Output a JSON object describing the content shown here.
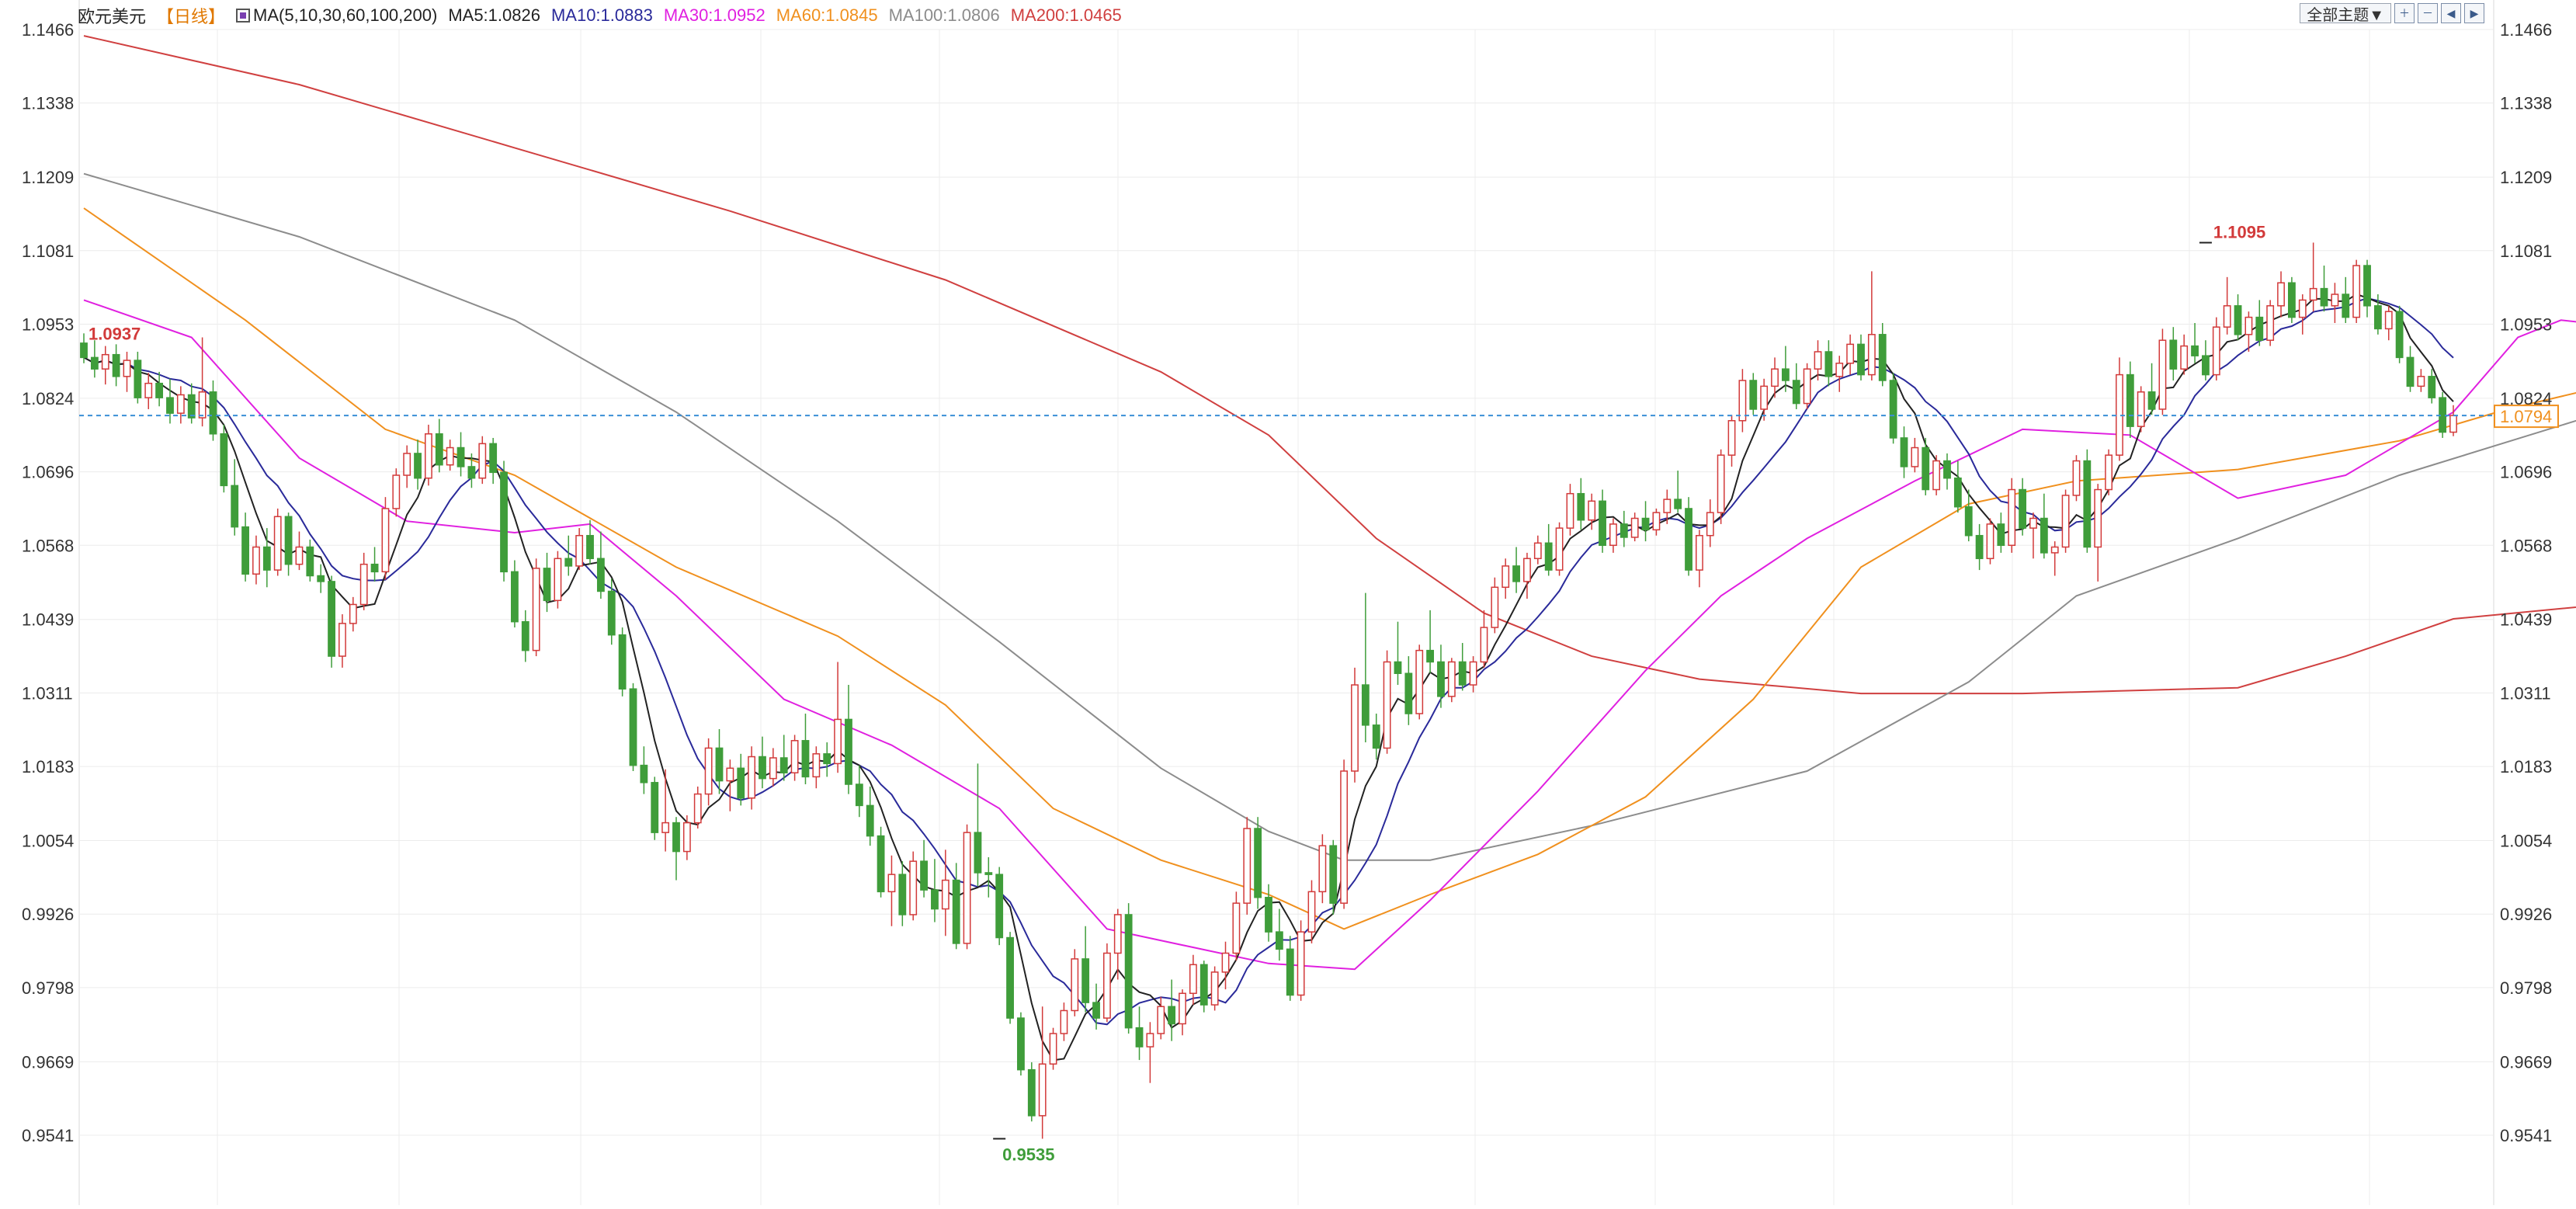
{
  "header": {
    "symbol": "欧元美元",
    "period": "【日线】",
    "ma_params": "MA(5,10,30,60,100,200)",
    "ma_values": [
      {
        "label": "MA5:1.0826",
        "color": "#222222"
      },
      {
        "label": "MA10:1.0883",
        "color": "#2a2a9a"
      },
      {
        "label": "MA30:1.0952",
        "color": "#e020e0"
      },
      {
        "label": "MA60:1.0845",
        "color": "#f0901e"
      },
      {
        "label": "MA100:1.0806",
        "color": "#8c8c8c"
      },
      {
        "label": "MA200:1.0465",
        "color": "#d04040"
      }
    ]
  },
  "toolbar": {
    "theme_label": "全部主题▼",
    "icons": [
      "zoom-in-icon",
      "zoom-out-icon",
      "prev-icon",
      "next-icon"
    ]
  },
  "colors": {
    "up": "#d23a3a",
    "down": "#3f9d3a",
    "grid": "#ececec",
    "current_line": "#3a8fd6",
    "axis_text": "#333333",
    "price_tag_border": "#f0901e",
    "price_tag_text": "#f0901e",
    "high_label": "#d23a3a",
    "low_label": "#3f9d3a"
  },
  "chart_data": {
    "type": "candlestick",
    "title": "欧元美元【日线】",
    "y_ticks": [
      "1.1466",
      "1.1338",
      "1.1209",
      "1.1081",
      "1.0953",
      "1.0824",
      "1.0696",
      "1.0568",
      "1.0439",
      "1.0311",
      "1.0183",
      "1.0054",
      "0.9926",
      "0.9798",
      "0.9669",
      "0.9541"
    ],
    "ylim": [
      0.9496,
      1.1508
    ],
    "current_price": "1.0794",
    "annotations": {
      "left_price": "1.0937",
      "high": "1.1095",
      "low": "0.9535"
    },
    "highlights": {
      "high_index": 197,
      "low_index": 85
    },
    "candles": [
      [
        1.092,
        1.0937,
        1.0885,
        1.0895
      ],
      [
        1.0895,
        1.0925,
        1.086,
        1.0875
      ],
      [
        1.0875,
        1.0915,
        1.0848,
        1.09
      ],
      [
        1.09,
        1.0918,
        1.0845,
        1.0862
      ],
      [
        1.0862,
        1.0905,
        1.0835,
        1.089
      ],
      [
        1.089,
        1.0905,
        1.0815,
        1.0825
      ],
      [
        1.0825,
        1.0868,
        1.0805,
        1.085
      ],
      [
        1.085,
        1.087,
        1.081,
        1.0825
      ],
      [
        1.0825,
        1.0858,
        1.078,
        1.0798
      ],
      [
        1.0798,
        1.0845,
        1.078,
        1.083
      ],
      [
        1.083,
        1.085,
        1.078,
        1.079
      ],
      [
        1.079,
        1.093,
        1.0775,
        1.0835
      ],
      [
        1.0835,
        1.0855,
        1.075,
        1.0762
      ],
      [
        1.0762,
        1.0778,
        1.066,
        1.0672
      ],
      [
        1.0672,
        1.0718,
        1.0585,
        1.06
      ],
      [
        1.06,
        1.0625,
        1.0505,
        1.0518
      ],
      [
        1.0518,
        1.0585,
        1.05,
        1.0565
      ],
      [
        1.0565,
        1.0598,
        1.0495,
        1.0525
      ],
      [
        1.0525,
        1.0632,
        1.0515,
        1.0618
      ],
      [
        1.0618,
        1.0625,
        1.0515,
        1.0535
      ],
      [
        1.0535,
        1.0592,
        1.0525,
        1.0565
      ],
      [
        1.0565,
        1.0578,
        1.0505,
        1.0515
      ],
      [
        1.0515,
        1.0535,
        1.0485,
        1.0505
      ],
      [
        1.0505,
        1.0515,
        1.0355,
        1.0375
      ],
      [
        1.0375,
        1.0448,
        1.0355,
        1.0432
      ],
      [
        1.0432,
        1.0478,
        1.0418,
        1.0465
      ],
      [
        1.0465,
        1.0555,
        1.0455,
        1.0535
      ],
      [
        1.0535,
        1.0565,
        1.0505,
        1.0522
      ],
      [
        1.0522,
        1.0652,
        1.0508,
        1.0632
      ],
      [
        1.0632,
        1.0702,
        1.0618,
        1.069
      ],
      [
        1.069,
        1.0742,
        1.0668,
        1.0728
      ],
      [
        1.0728,
        1.0752,
        1.0665,
        1.0685
      ],
      [
        1.0685,
        1.0778,
        1.0672,
        1.0762
      ],
      [
        1.0762,
        1.0788,
        1.0695,
        1.0708
      ],
      [
        1.0708,
        1.0752,
        1.0698,
        1.0738
      ],
      [
        1.0738,
        1.0765,
        1.0688,
        1.0705
      ],
      [
        1.0705,
        1.0728,
        1.0668,
        1.0685
      ],
      [
        1.0685,
        1.0758,
        1.0675,
        1.0745
      ],
      [
        1.0745,
        1.0755,
        1.0675,
        1.0695
      ],
      [
        1.0695,
        1.0715,
        1.0505,
        1.0522
      ],
      [
        1.0522,
        1.0542,
        1.0425,
        1.0435
      ],
      [
        1.0435,
        1.0455,
        1.0365,
        1.0385
      ],
      [
        1.0385,
        1.0545,
        1.0375,
        1.0528
      ],
      [
        1.0528,
        1.0555,
        1.0452,
        1.0472
      ],
      [
        1.0472,
        1.0558,
        1.0458,
        1.0545
      ],
      [
        1.0545,
        1.0585,
        1.0515,
        1.0532
      ],
      [
        1.0532,
        1.0598,
        1.0525,
        1.0585
      ],
      [
        1.0585,
        1.0612,
        1.0535,
        1.0545
      ],
      [
        1.0545,
        1.0592,
        1.0475,
        1.0488
      ],
      [
        1.0488,
        1.051,
        1.0395,
        1.0412
      ],
      [
        1.0412,
        1.0425,
        1.0305,
        1.0318
      ],
      [
        1.0318,
        1.0328,
        1.0175,
        1.0185
      ],
      [
        1.0185,
        1.0218,
        1.0135,
        1.0155
      ],
      [
        1.0155,
        1.0165,
        1.0055,
        1.0068
      ],
      [
        1.0068,
        1.0178,
        1.0035,
        1.0085
      ],
      [
        1.0085,
        1.0095,
        0.9985,
        1.0035
      ],
      [
        1.0035,
        1.0098,
        1.002,
        1.0085
      ],
      [
        1.0085,
        1.0148,
        1.0075,
        1.0135
      ],
      [
        1.0135,
        1.0232,
        1.0115,
        1.0215
      ],
      [
        1.0215,
        1.0248,
        1.0135,
        1.0158
      ],
      [
        1.0158,
        1.0195,
        1.0105,
        1.018
      ],
      [
        1.018,
        1.0205,
        1.0115,
        1.0128
      ],
      [
        1.0128,
        1.0218,
        1.0108,
        1.02
      ],
      [
        1.02,
        1.0235,
        1.0145,
        1.0162
      ],
      [
        1.0162,
        1.0215,
        1.0148,
        1.0198
      ],
      [
        1.0198,
        1.0238,
        1.0158,
        1.0172
      ],
      [
        1.0172,
        1.0238,
        1.0158,
        1.0228
      ],
      [
        1.0228,
        1.0275,
        1.0152,
        1.0165
      ],
      [
        1.0165,
        1.0218,
        1.0145,
        1.0205
      ],
      [
        1.0205,
        1.0225,
        1.0165,
        1.0188
      ],
      [
        1.0188,
        1.0365,
        1.0172,
        1.0265
      ],
      [
        1.0265,
        1.0325,
        1.0135,
        1.0152
      ],
      [
        1.0152,
        1.0185,
        1.0095,
        1.0115
      ],
      [
        1.0115,
        1.0148,
        1.0045,
        1.0062
      ],
      [
        1.0062,
        1.0078,
        0.9955,
        0.9965
      ],
      [
        0.9965,
        1.0028,
        0.9905,
        0.9995
      ],
      [
        0.9995,
        1.0018,
        0.9905,
        0.9925
      ],
      [
        0.9925,
        1.0035,
        0.9915,
        1.0018
      ],
      [
        1.0018,
        1.0055,
        0.9955,
        0.9968
      ],
      [
        0.9968,
        1.0022,
        0.9912,
        0.9935
      ],
      [
        0.9935,
        1.0038,
        0.9888,
        0.9985
      ],
      [
        0.9985,
        1.0015,
        0.9865,
        0.9875
      ],
      [
        0.9875,
        1.0082,
        0.9865,
        1.0068
      ],
      [
        1.0068,
        1.0188,
        0.9975,
        0.9998
      ],
      [
        0.9998,
        1.0025,
        0.9955,
        0.9995
      ],
      [
        0.9995,
        1.0008,
        0.9872,
        0.9885
      ],
      [
        0.9885,
        0.9895,
        0.9735,
        0.9745
      ],
      [
        0.9745,
        0.9755,
        0.9645,
        0.9655
      ],
      [
        0.9655,
        0.9668,
        0.9565,
        0.9575
      ],
      [
        0.9575,
        0.9765,
        0.9535,
        0.9665
      ],
      [
        0.9665,
        0.9728,
        0.9655,
        0.9718
      ],
      [
        0.9718,
        0.9772,
        0.9705,
        0.9758
      ],
      [
        0.9758,
        0.9865,
        0.9748,
        0.9848
      ],
      [
        0.9848,
        0.9905,
        0.9755,
        0.9772
      ],
      [
        0.9772,
        0.9805,
        0.9725,
        0.9745
      ],
      [
        0.9745,
        0.9875,
        0.9738,
        0.9858
      ],
      [
        0.9858,
        0.9935,
        0.9812,
        0.9925
      ],
      [
        0.9925,
        0.9945,
        0.9718,
        0.9728
      ],
      [
        0.9728,
        0.9765,
        0.9672,
        0.9695
      ],
      [
        0.9695,
        0.9738,
        0.9632,
        0.9718
      ],
      [
        0.9718,
        0.9782,
        0.9708,
        0.9765
      ],
      [
        0.9765,
        0.9812,
        0.9705,
        0.9735
      ],
      [
        0.9735,
        0.9795,
        0.9715,
        0.9788
      ],
      [
        0.9788,
        0.9855,
        0.9768,
        0.9838
      ],
      [
        0.9838,
        0.9845,
        0.9755,
        0.9768
      ],
      [
        0.9768,
        0.9835,
        0.9758,
        0.9825
      ],
      [
        0.9825,
        0.9878,
        0.9795,
        0.9858
      ],
      [
        0.9858,
        0.9965,
        0.9845,
        0.9945
      ],
      [
        0.9945,
        1.0095,
        0.9925,
        1.0075
      ],
      [
        1.0075,
        1.0095,
        0.9935,
        0.9955
      ],
      [
        0.9955,
        0.9978,
        0.9878,
        0.9895
      ],
      [
        0.9895,
        0.9935,
        0.9845,
        0.9865
      ],
      [
        0.9865,
        0.9888,
        0.9775,
        0.9785
      ],
      [
        0.9785,
        0.9915,
        0.9775,
        0.9895
      ],
      [
        0.9895,
        0.9985,
        0.9875,
        0.9965
      ],
      [
        0.9965,
        1.0065,
        0.9945,
        1.0045
      ],
      [
        1.0045,
        1.0055,
        0.9925,
        0.9945
      ],
      [
        0.9945,
        1.0195,
        0.9935,
        1.0175
      ],
      [
        1.0175,
        1.0355,
        1.0155,
        1.0325
      ],
      [
        1.0325,
        1.0485,
        1.0225,
        1.0255
      ],
      [
        1.0255,
        1.0275,
        1.0195,
        1.0215
      ],
      [
        1.0215,
        1.0385,
        1.0205,
        1.0365
      ],
      [
        1.0365,
        1.0435,
        1.0325,
        1.0345
      ],
      [
        1.0345,
        1.0375,
        1.0255,
        1.0275
      ],
      [
        1.0275,
        1.0395,
        1.0265,
        1.0385
      ],
      [
        1.0385,
        1.0455,
        1.0345,
        1.0365
      ],
      [
        1.0365,
        1.0395,
        1.0285,
        1.0305
      ],
      [
        1.0305,
        1.0372,
        1.0295,
        1.0365
      ],
      [
        1.0365,
        1.0398,
        1.0315,
        1.0325
      ],
      [
        1.0325,
        1.0375,
        1.0312,
        1.0365
      ],
      [
        1.0365,
        1.0455,
        1.0355,
        1.0425
      ],
      [
        1.0425,
        1.0512,
        1.0415,
        1.0495
      ],
      [
        1.0495,
        1.0545,
        1.0475,
        1.0532
      ],
      [
        1.0532,
        1.0565,
        1.0485,
        1.0505
      ],
      [
        1.0505,
        1.0555,
        1.0475,
        1.0545
      ],
      [
        1.0545,
        1.0585,
        1.0535,
        1.0572
      ],
      [
        1.0572,
        1.0605,
        1.0515,
        1.0525
      ],
      [
        1.0525,
        1.0608,
        1.0515,
        1.0598
      ],
      [
        1.0598,
        1.0675,
        1.0585,
        1.0658
      ],
      [
        1.0658,
        1.0685,
        1.0595,
        1.0612
      ],
      [
        1.0612,
        1.0658,
        1.0595,
        1.0645
      ],
      [
        1.0645,
        1.0665,
        1.0555,
        1.0568
      ],
      [
        1.0568,
        1.0615,
        1.0555,
        1.0605
      ],
      [
        1.0605,
        1.0628,
        1.0565,
        1.0582
      ],
      [
        1.0582,
        1.0625,
        1.0575,
        1.0615
      ],
      [
        1.0615,
        1.0645,
        1.0575,
        1.0595
      ],
      [
        1.0595,
        1.0632,
        1.0585,
        1.0625
      ],
      [
        1.0625,
        1.0665,
        1.0605,
        1.0648
      ],
      [
        1.0648,
        1.0698,
        1.0625,
        1.0632
      ],
      [
        1.0632,
        1.0652,
        1.0515,
        1.0525
      ],
      [
        1.0525,
        1.0595,
        1.0495,
        1.0585
      ],
      [
        1.0585,
        1.0648,
        1.0565,
        1.0625
      ],
      [
        1.0625,
        1.0735,
        1.0605,
        1.0725
      ],
      [
        1.0725,
        1.0795,
        1.0705,
        1.0785
      ],
      [
        1.0785,
        1.0875,
        1.0765,
        1.0855
      ],
      [
        1.0855,
        1.0868,
        1.0795,
        1.0805
      ],
      [
        1.0805,
        1.0858,
        1.0785,
        1.0845
      ],
      [
        1.0845,
        1.0895,
        1.0825,
        1.0875
      ],
      [
        1.0875,
        1.0915,
        1.0835,
        1.0855
      ],
      [
        1.0855,
        1.0885,
        1.0805,
        1.0815
      ],
      [
        1.0815,
        1.0885,
        1.0805,
        1.0875
      ],
      [
        1.0875,
        1.0925,
        1.0855,
        1.0905
      ],
      [
        1.0905,
        1.0925,
        1.0845,
        1.0862
      ],
      [
        1.0862,
        1.0898,
        1.0835,
        1.0885
      ],
      [
        1.0885,
        1.0935,
        1.0865,
        1.0918
      ],
      [
        1.0918,
        1.0935,
        1.0855,
        1.0865
      ],
      [
        1.0865,
        1.1045,
        1.0855,
        1.0935
      ],
      [
        1.0935,
        1.0955,
        1.0845,
        1.0855
      ],
      [
        1.0855,
        1.0868,
        1.0745,
        1.0755
      ],
      [
        1.0755,
        1.0775,
        1.0685,
        1.0705
      ],
      [
        1.0705,
        1.0755,
        1.0695,
        1.0738
      ],
      [
        1.0738,
        1.0755,
        1.0655,
        1.0665
      ],
      [
        1.0665,
        1.0725,
        1.0655,
        1.0715
      ],
      [
        1.0715,
        1.0728,
        1.0665,
        1.0685
      ],
      [
        1.0685,
        1.0715,
        1.0625,
        1.0635
      ],
      [
        1.0635,
        1.0665,
        1.0575,
        1.0585
      ],
      [
        1.0585,
        1.0605,
        1.0525,
        1.0545
      ],
      [
        1.0545,
        1.0615,
        1.0535,
        1.0605
      ],
      [
        1.0605,
        1.0625,
        1.0555,
        1.0568
      ],
      [
        1.0568,
        1.0685,
        1.0555,
        1.0665
      ],
      [
        1.0665,
        1.0685,
        1.0585,
        1.0598
      ],
      [
        1.0598,
        1.0625,
        1.0545,
        1.0615
      ],
      [
        1.0615,
        1.0658,
        1.0545,
        1.0555
      ],
      [
        1.0555,
        1.0575,
        1.0515,
        1.0565
      ],
      [
        1.0565,
        1.0665,
        1.0555,
        1.0655
      ],
      [
        1.0655,
        1.0725,
        1.0645,
        1.0715
      ],
      [
        1.0715,
        1.0735,
        1.0555,
        1.0565
      ],
      [
        1.0565,
        1.0675,
        1.0505,
        1.0665
      ],
      [
        1.0665,
        1.0735,
        1.0655,
        1.0725
      ],
      [
        1.0725,
        1.0895,
        1.0715,
        1.0865
      ],
      [
        1.0865,
        1.0888,
        1.0755,
        1.0775
      ],
      [
        1.0775,
        1.0845,
        1.0765,
        1.0835
      ],
      [
        1.0835,
        1.0885,
        1.0795,
        1.0805
      ],
      [
        1.0805,
        1.0945,
        1.0795,
        1.0925
      ],
      [
        1.0925,
        1.0948,
        1.0855,
        1.0875
      ],
      [
        1.0875,
        1.0935,
        1.0865,
        1.0915
      ],
      [
        1.0915,
        1.0955,
        1.0885,
        1.0898
      ],
      [
        1.0898,
        1.0925,
        1.0855,
        1.0865
      ],
      [
        1.0865,
        1.0965,
        1.0855,
        1.0948
      ],
      [
        1.0948,
        1.1035,
        1.0935,
        1.0985
      ],
      [
        1.0985,
        1.1005,
        1.0925,
        1.0935
      ],
      [
        1.0935,
        1.0975,
        1.0905,
        1.0965
      ],
      [
        1.0965,
        1.0995,
        1.0915,
        1.0925
      ],
      [
        1.0925,
        1.0995,
        1.0915,
        1.0985
      ],
      [
        1.0985,
        1.1045,
        1.0965,
        1.1025
      ],
      [
        1.1025,
        1.1035,
        1.0955,
        1.0965
      ],
      [
        1.0965,
        1.1005,
        1.0935,
        1.0995
      ],
      [
        1.0995,
        1.1095,
        1.0975,
        1.1015
      ],
      [
        1.1015,
        1.1055,
        1.0975,
        1.0985
      ],
      [
        1.0985,
        1.1025,
        1.0955,
        1.1005
      ],
      [
        1.1005,
        1.1035,
        1.0955,
        1.0965
      ],
      [
        1.0965,
        1.1065,
        1.0955,
        1.1055
      ],
      [
        1.1055,
        1.1065,
        1.0965,
        1.0985
      ],
      [
        1.0985,
        1.1005,
        1.0935,
        1.0945
      ],
      [
        1.0945,
        1.0985,
        1.0925,
        1.0975
      ],
      [
        1.0975,
        1.0985,
        1.0885,
        1.0895
      ],
      [
        1.0895,
        1.0915,
        1.0835,
        1.0845
      ],
      [
        1.0845,
        1.0875,
        1.0835,
        1.0862
      ],
      [
        1.0862,
        1.0875,
        1.0815,
        1.0825
      ],
      [
        1.0825,
        1.0835,
        1.0755,
        1.0765
      ],
      [
        1.0765,
        1.0812,
        1.0758,
        1.0794
      ]
    ]
  }
}
